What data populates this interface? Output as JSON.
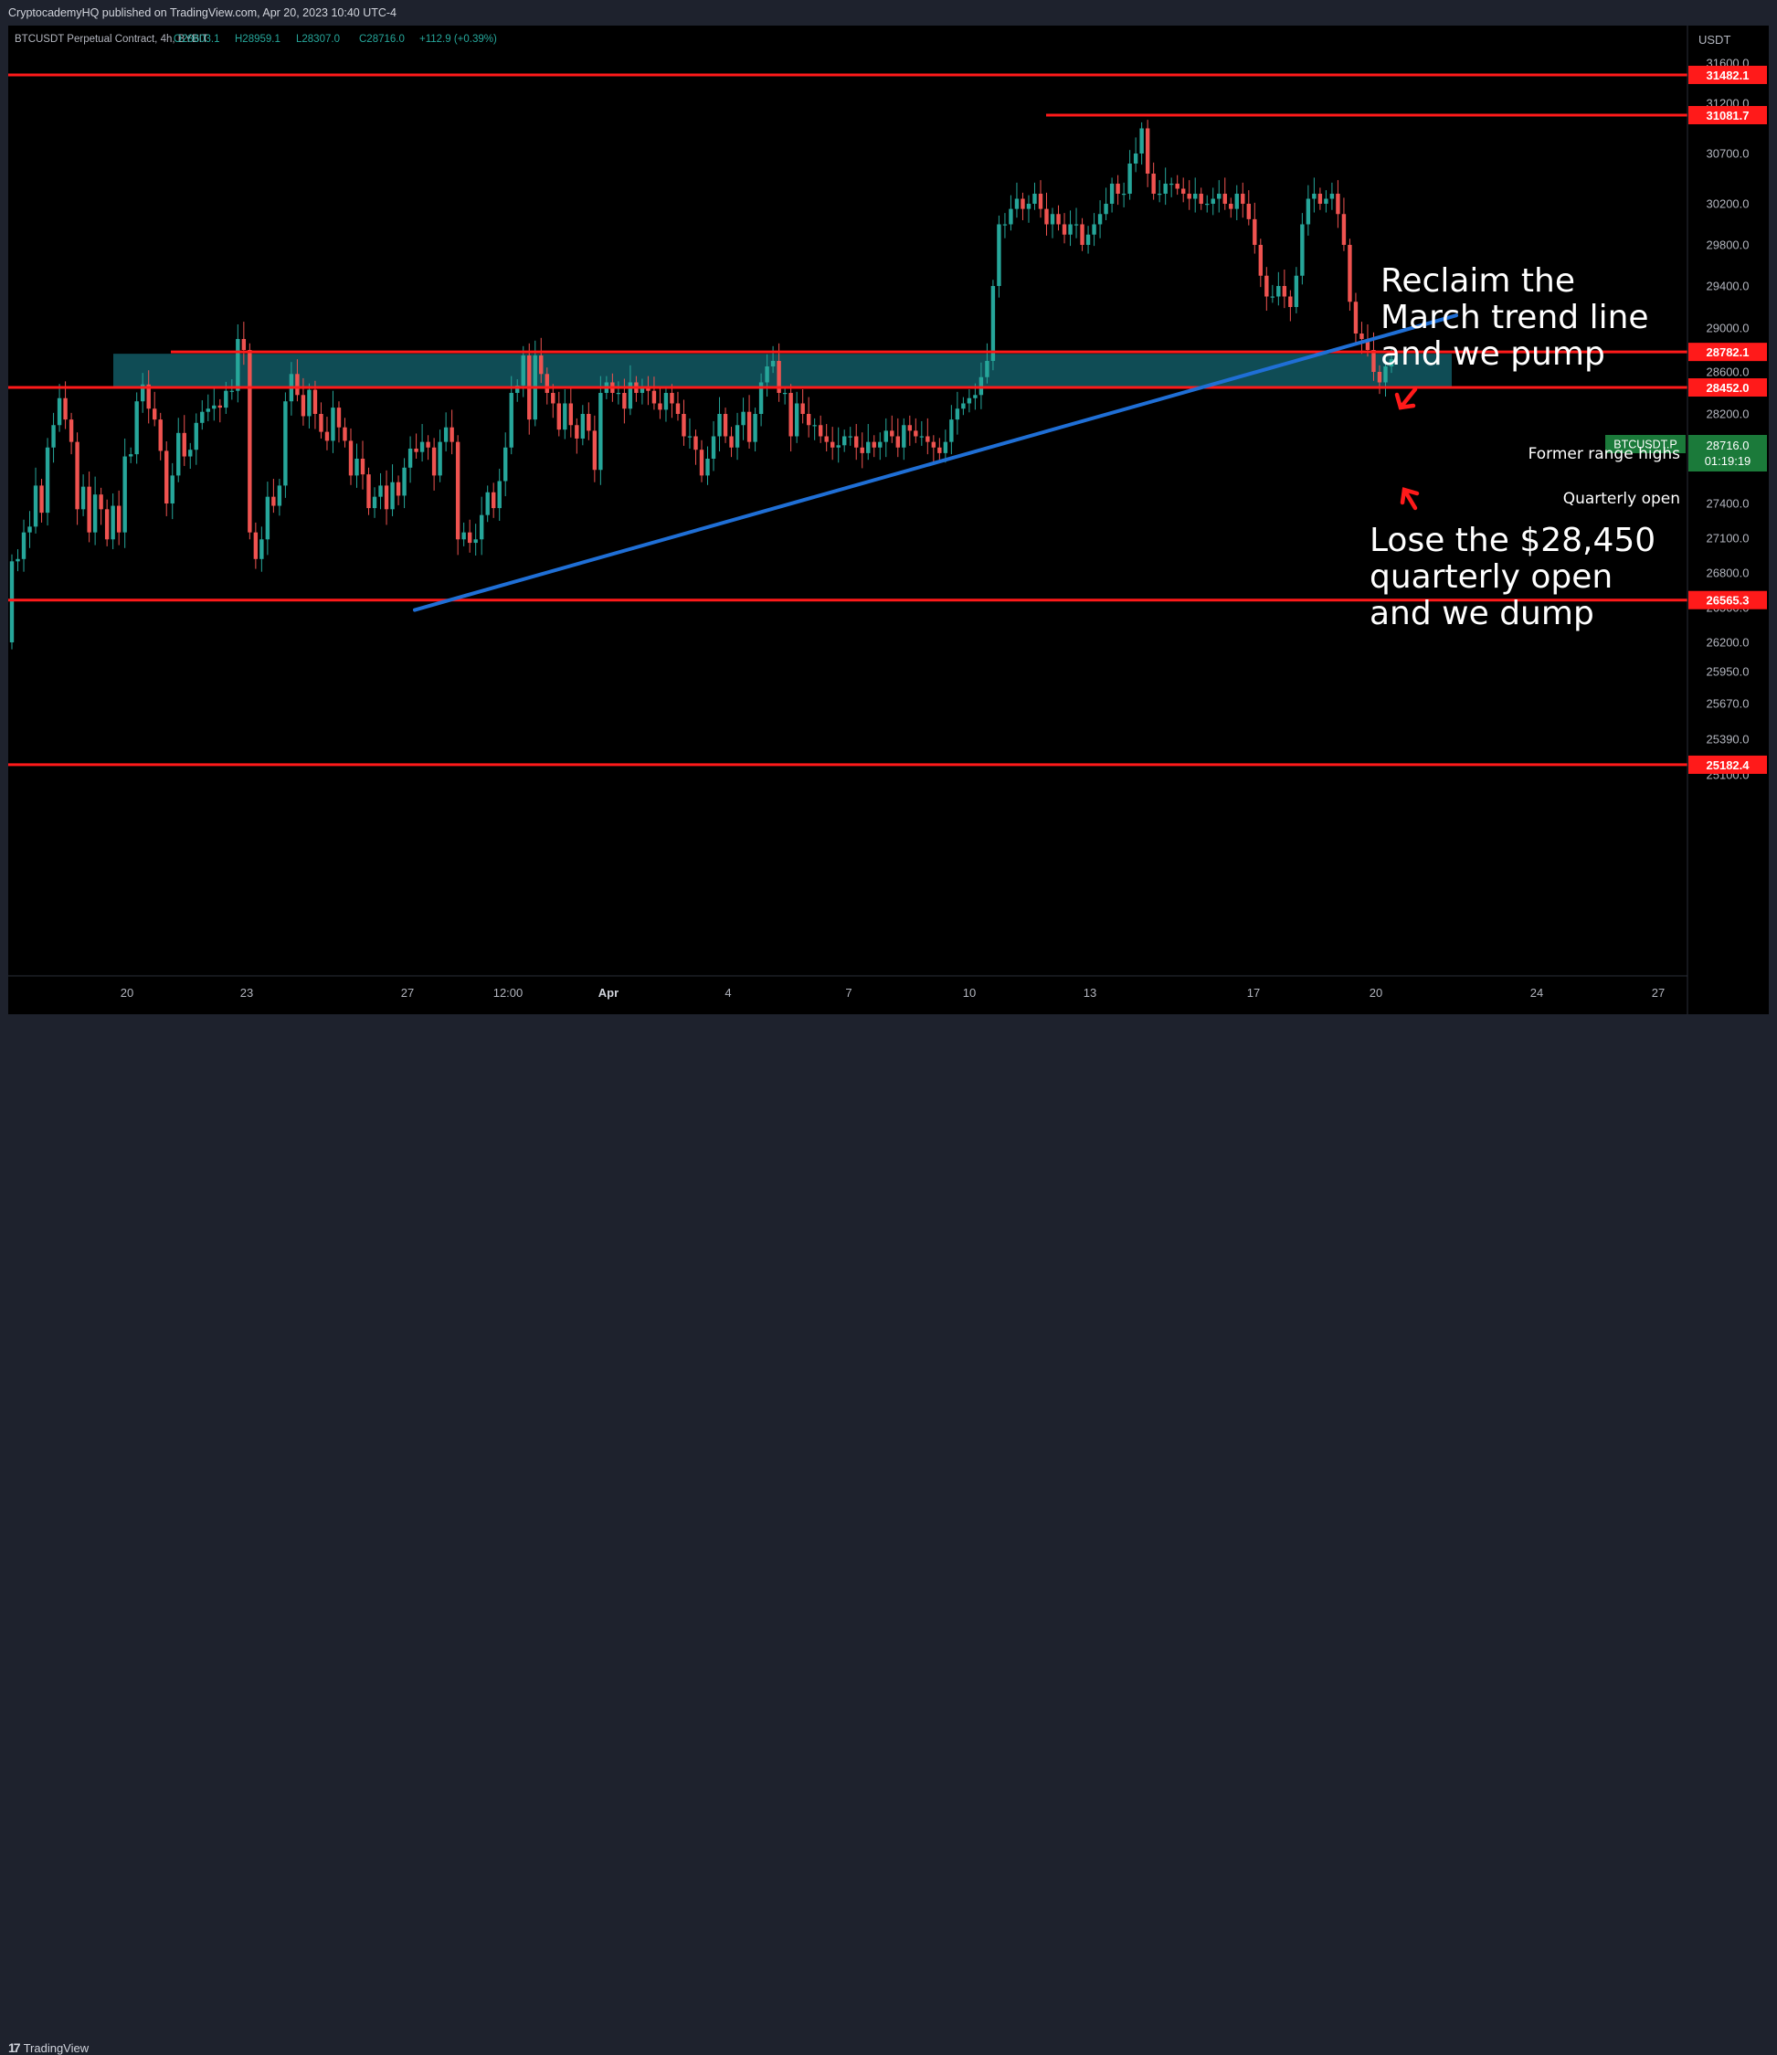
{
  "publisher": "CryptocademyHQ published on TradingView.com, Apr 20, 2023 10:40 UTC-4",
  "footer": {
    "brand": "TradingView"
  },
  "colors": {
    "up": "#26a69a",
    "down": "#ef5350",
    "level": "#ff1a1a",
    "trend": "#1f6fd6",
    "zone": "#0f4c55",
    "axis_text": "#b2b5be"
  },
  "chart_data": {
    "type": "candlestick",
    "symbol": "BTCUSDT Perpetual Contract, 4h, BYBIT",
    "ohlc": {
      "o": "O28603.1",
      "h": "H28959.1",
      "l": "L28307.0",
      "c": "C28716.0",
      "change": "+112.9 (+0.39%)"
    },
    "currency": "USDT",
    "y_ticks": [
      31600,
      31200,
      30700,
      30200,
      29800,
      29400,
      29000,
      28600,
      28200,
      27800,
      27400,
      27100,
      26800,
      26500,
      26200,
      25950,
      25670,
      25390,
      25100
    ],
    "x_ticks": [
      "20",
      "23",
      "27",
      "12:00",
      "Apr",
      "4",
      "7",
      "10",
      "13",
      "17",
      "20",
      "24",
      "27"
    ],
    "levels": [
      {
        "price": 31482.1,
        "label": "31482.1"
      },
      {
        "price": 31081.7,
        "label": "31081.7"
      },
      {
        "price": 28782.1,
        "label": "28782.1"
      },
      {
        "price": 28452.0,
        "label": "28452.0"
      },
      {
        "price": 26565.3,
        "label": "26565.3"
      },
      {
        "price": 25182.4,
        "label": "25182.4"
      }
    ],
    "last_price": {
      "symbol": "BTCUSDT.P",
      "price": "28716.0",
      "countdown": "01:19:19"
    },
    "zone": {
      "top": 28782.1,
      "bottom": 28452.0,
      "label": "Former range highs"
    },
    "quarterly_label": "Quarterly open",
    "trend_line": {
      "from": {
        "date": "Mar 27",
        "price": 26480
      },
      "to": {
        "date": "Apr 22",
        "price": 29120
      }
    },
    "annotations": {
      "reclaim": [
        "Reclaim the",
        "March trend line",
        "and we pump"
      ],
      "lose": [
        "Lose the $28,450",
        "quarterly open",
        "and we dump"
      ]
    },
    "closes": [
      26900,
      26920,
      27150,
      27200,
      27560,
      27320,
      27900,
      28100,
      28350,
      28150,
      27950,
      27350,
      27550,
      27150,
      27480,
      27350,
      27090,
      27380,
      27150,
      27820,
      27840,
      28320,
      28480,
      28250,
      28150,
      27870,
      27400,
      27650,
      28030,
      27820,
      27880,
      28120,
      28220,
      28250,
      28280,
      28260,
      28420,
      28420,
      28900,
      28800,
      27150,
      26920,
      27090,
      27460,
      27380,
      27560,
      28320,
      28580,
      28380,
      28180,
      28430,
      28200,
      28040,
      27960,
      28260,
      28080,
      27960,
      27650,
      27800,
      27660,
      27360,
      27460,
      27560,
      27350,
      27590,
      27470,
      27720,
      27890,
      27860,
      27950,
      27900,
      27650,
      27950,
      28080,
      27950,
      27090,
      27150,
      27060,
      27090,
      27300,
      27500,
      27360,
      27600,
      27900,
      28400,
      28470,
      28750,
      28150,
      28750,
      28580,
      28400,
      28300,
      28060,
      28300,
      28100,
      27980,
      28200,
      28050,
      27700,
      28400,
      28500,
      28400,
      28400,
      28250,
      28500,
      28400,
      28450,
      28420,
      28300,
      28240,
      28400,
      28300,
      28200,
      28000,
      28000,
      27880,
      27650,
      27800,
      28000,
      28200,
      28000,
      27900,
      28100,
      28220,
      27950,
      28200,
      28500,
      28650,
      28700,
      28400,
      28400,
      28000,
      28300,
      28200,
      28100,
      28100,
      28000,
      27950,
      27900,
      27920,
      28000,
      28000,
      27900,
      27850,
      27950,
      27900,
      27950,
      28050,
      28000,
      27900,
      28100,
      28050,
      28000,
      28000,
      27950,
      27900,
      27850,
      27950,
      28150,
      28250,
      28300,
      28350,
      28380,
      28550,
      28700,
      29400,
      30000,
      30000,
      30150,
      30250,
      30150,
      30200,
      30300,
      30150,
      30000,
      30100,
      30000,
      29900,
      30000,
      30000,
      29800,
      29900,
      30000,
      30100,
      30200,
      30400,
      30300,
      30300,
      30600,
      30700,
      30950,
      30500,
      30300,
      30300,
      30400,
      30400,
      30350,
      30300,
      30250,
      30300,
      30200,
      30200,
      30250,
      30300,
      30200,
      30150,
      30300,
      30200,
      30050,
      29800,
      29500,
      29300,
      29300,
      29400,
      29300,
      29200,
      29500,
      30000,
      30250,
      30300,
      30200,
      30250,
      30300,
      30100,
      29800,
      29250,
      28950,
      28900,
      28800,
      28600,
      28500,
      28650,
      28716
    ]
  }
}
